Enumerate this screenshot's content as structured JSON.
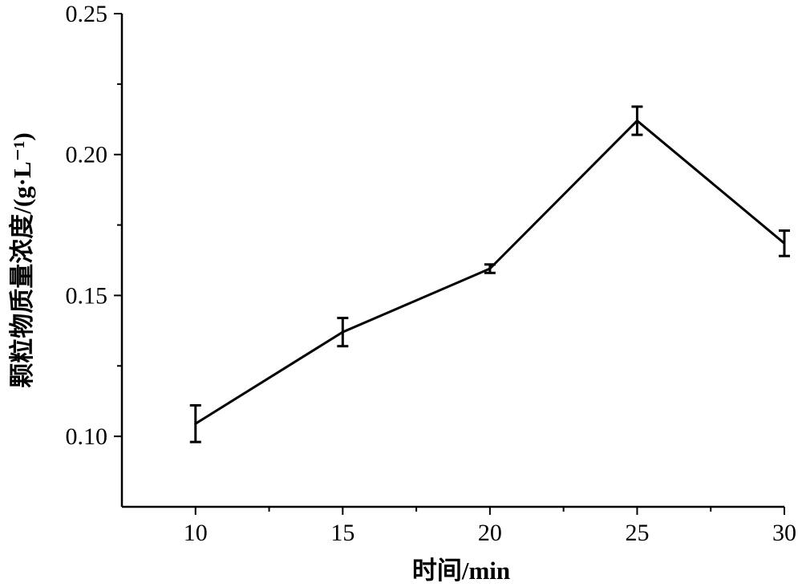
{
  "chart_data": {
    "type": "line",
    "title": "",
    "xlabel": "时间/min",
    "ylabel": "颗粒物质量浓度/(g·L⁻¹)",
    "x": [
      10,
      15,
      20,
      25,
      30
    ],
    "series": [
      {
        "values": [
          0.1045,
          0.137,
          0.1595,
          0.212,
          0.1685
        ],
        "error": [
          0.0065,
          0.005,
          0.0015,
          0.005,
          0.0045
        ]
      }
    ],
    "xlim": [
      7.5,
      30
    ],
    "ylim": [
      0.075,
      0.25
    ],
    "xticks": [
      10,
      15,
      20,
      25,
      30
    ],
    "xtick_labels": [
      "10",
      "15",
      "20",
      "25",
      "30"
    ],
    "yticks": [
      0.1,
      0.15,
      0.2,
      0.25
    ],
    "ytick_labels": [
      "0.10",
      "0.15",
      "0.20",
      "0.25"
    ],
    "grid": false,
    "legend": "none",
    "colors": {
      "line": "#000000"
    }
  }
}
